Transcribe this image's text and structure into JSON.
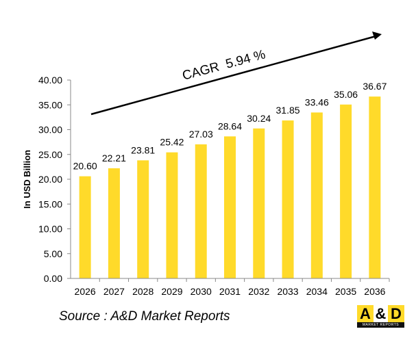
{
  "chart_data": {
    "type": "bar",
    "categories": [
      "2026",
      "2027",
      "2028",
      "2029",
      "2030",
      "2031",
      "2032",
      "2033",
      "2034",
      "2035",
      "2036"
    ],
    "values": [
      20.6,
      22.21,
      23.81,
      25.42,
      27.03,
      28.64,
      30.24,
      31.85,
      33.46,
      35.06,
      36.67
    ],
    "data_labels": [
      "20.60",
      "22.21",
      "23.81",
      "25.42",
      "27.03",
      "28.64",
      "30.24",
      "31.85",
      "33.46",
      "35.06",
      "36.67"
    ],
    "ylabel": "In USD Billion",
    "xlabel": "",
    "ylim": [
      0,
      40
    ],
    "yticks": [
      "0.00",
      "5.00",
      "10.00",
      "15.00",
      "20.00",
      "25.00",
      "30.00",
      "35.00",
      "40.00"
    ],
    "grid": false,
    "bar_color": "#FFDA2A",
    "annotation": "CAGR  5.94 %"
  },
  "source": "Source : A&D Market Reports",
  "logo": {
    "a": "A",
    "amp": "&",
    "d": "D",
    "tagline": "MARKET REPORTS",
    "color": "#FFDA2A"
  }
}
